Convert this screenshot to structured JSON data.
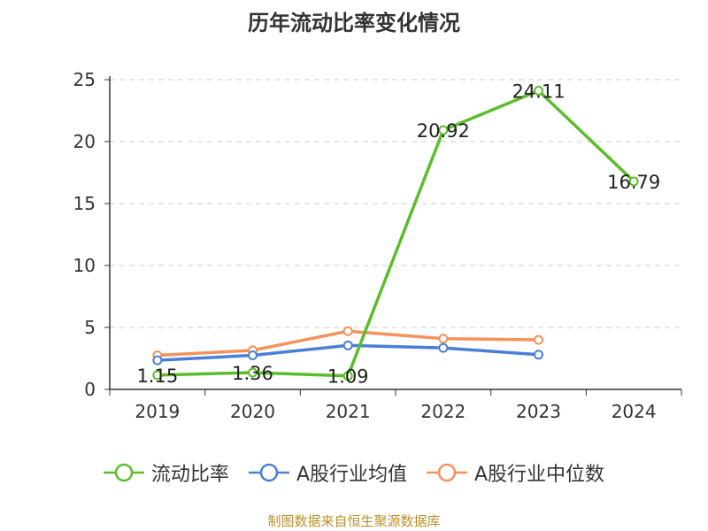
{
  "chart_data": {
    "type": "line",
    "title": "历年流动比率变化情况",
    "categories": [
      "2019",
      "2020",
      "2021",
      "2022",
      "2023",
      "2024"
    ],
    "ylim": [
      0,
      25
    ],
    "yticks": [
      0,
      5,
      10,
      15,
      20,
      25
    ],
    "grid": true,
    "legend_position": "bottom",
    "series": [
      {
        "name": "流动比率",
        "color": "#5cbd2c",
        "values": [
          1.15,
          1.36,
          1.09,
          20.92,
          24.11,
          16.79
        ],
        "labels": [
          "1.15",
          "1.36",
          "1.09",
          "20.92",
          "24.11",
          "16.79"
        ]
      },
      {
        "name": "A股行业均值",
        "color": "#4a7fd6",
        "values": [
          2.35,
          2.75,
          3.55,
          3.35,
          2.8,
          null
        ]
      },
      {
        "name": "A股行业中位数",
        "color": "#f4925b",
        "values": [
          2.75,
          3.15,
          4.7,
          4.1,
          4.0,
          null
        ]
      }
    ]
  },
  "source": "制图数据来自恒生聚源数据库"
}
